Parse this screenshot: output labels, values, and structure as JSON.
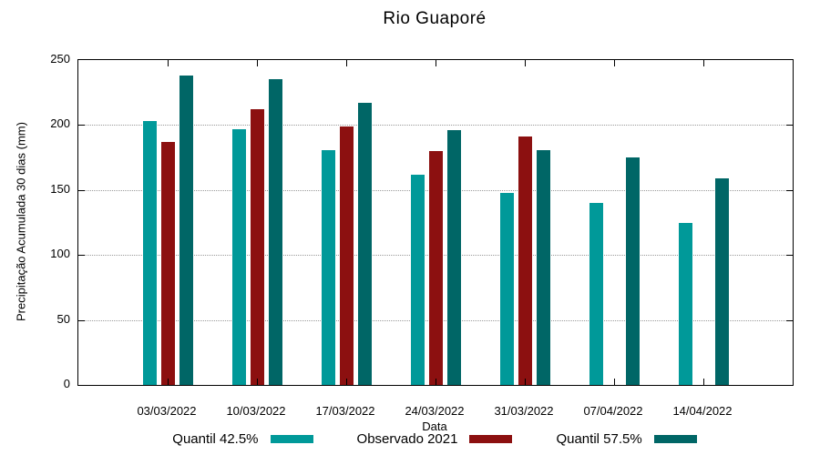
{
  "chart_data": {
    "type": "bar",
    "title": "Rio Guaporé",
    "xlabel": "Data",
    "ylabel": "Precipitação Acumulada 30 dias (mm)",
    "ylim": [
      0,
      250
    ],
    "yticks": [
      0,
      50,
      100,
      150,
      200,
      250
    ],
    "grid": "horizontal dotted gridlines at 50,100,150,200",
    "legend_position": "bottom",
    "background_color": "#ffffff",
    "categories": [
      "03/03/2022",
      "10/03/2022",
      "17/03/2022",
      "24/03/2022",
      "31/03/2022",
      "07/04/2022",
      "14/04/2022"
    ],
    "series": [
      {
        "name": "Quantil 42.5%",
        "color": "#009999",
        "values": [
          203,
          197,
          181,
          162,
          148,
          140,
          125
        ]
      },
      {
        "name": "Observado 2021",
        "color": "#8c1010",
        "values": [
          187,
          212,
          199,
          180,
          191,
          null,
          null
        ]
      },
      {
        "name": "Quantil 57.5%",
        "color": "#006666",
        "values": [
          238,
          235,
          217,
          196,
          181,
          175,
          159
        ]
      }
    ]
  }
}
